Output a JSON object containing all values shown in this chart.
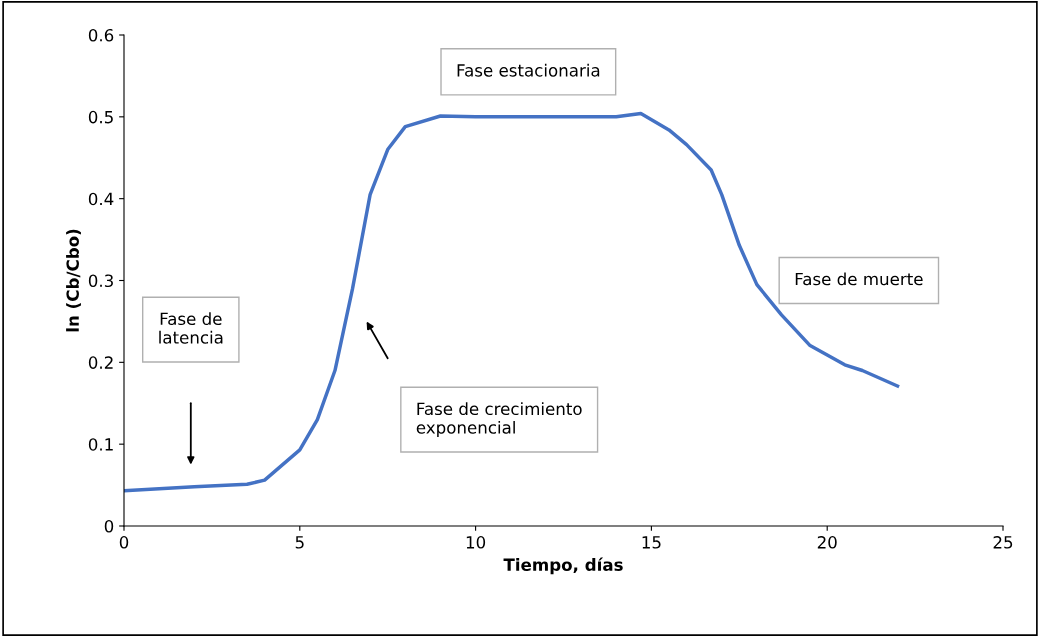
{
  "chart_data": {
    "type": "line",
    "xlabel": "Tiempo, días",
    "ylabel": "ln (Cb/Cbo)",
    "x": [
      0,
      2,
      3.5,
      4,
      5,
      5.5,
      6,
      6.5,
      7,
      7.5,
      8,
      9,
      10,
      14,
      14.7,
      15.5,
      16,
      16.7,
      17,
      17.5,
      18,
      18.7,
      19.5,
      20,
      20.5,
      21,
      22
    ],
    "series": [
      {
        "color": "#4472c4",
        "values": [
          0.043,
          0.048,
          0.051,
          0.056,
          0.093,
          0.13,
          0.19,
          0.29,
          0.405,
          0.46,
          0.488,
          0.501,
          0.5,
          0.5,
          0.504,
          0.484,
          0.466,
          0.435,
          0.405,
          0.343,
          0.295,
          0.258,
          0.221,
          0.209,
          0.197,
          0.19,
          0.171
        ]
      }
    ],
    "xlim": [
      0,
      25
    ],
    "xticks": [
      0,
      5,
      10,
      15,
      20,
      25
    ],
    "ylim": [
      0,
      0.6
    ],
    "yticks": [
      0,
      0.1,
      0.2,
      0.3,
      0.4,
      0.5,
      0.6
    ],
    "grid": false,
    "legend": false,
    "marker": "none",
    "line_style": "solid",
    "annotations": [
      "Fase de latencia",
      "Fase de crecimiento exponencial",
      "Fase estacionaria",
      "Fase de muerte"
    ]
  }
}
